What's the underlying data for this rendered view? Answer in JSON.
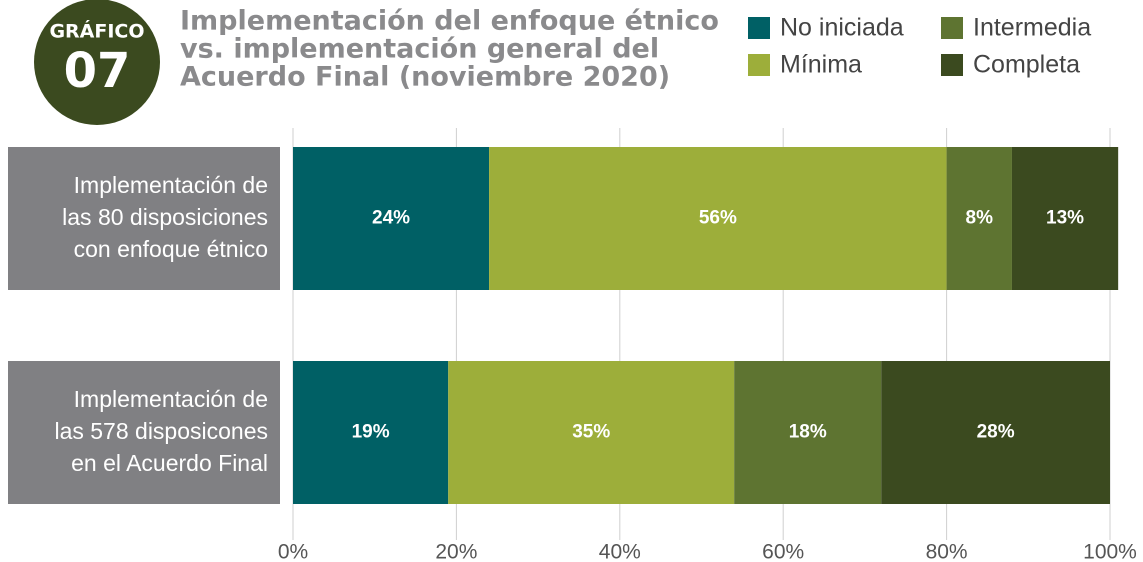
{
  "chart_data": {
    "type": "stacked-bar-horizontal",
    "badge": {
      "label": "GRÁFICO",
      "number": "07"
    },
    "title": [
      "Implementación del enfoque étnico",
      "vs. implementación general del",
      "Acuerdo Final (noviembre 2020)"
    ],
    "categories": [
      [
        "Implementación de",
        "las 80 disposiciones",
        "con enfoque étnico"
      ],
      [
        "Implementación de",
        "las 578 disposicones",
        "en el Acuerdo Final"
      ]
    ],
    "series": [
      {
        "name": "No iniciada",
        "color": "#006065",
        "values": [
          24,
          19
        ],
        "value_labels": [
          "24%",
          "19%"
        ]
      },
      {
        "name": "Mínima",
        "color": "#9dae3a",
        "values": [
          56,
          35
        ],
        "value_labels": [
          "56%",
          "35%"
        ]
      },
      {
        "name": "Intermedia",
        "color": "#5e7431",
        "values": [
          8,
          18
        ],
        "value_labels": [
          "8%",
          "18%"
        ]
      },
      {
        "name": "Completa",
        "color": "#3b4a1f",
        "values": [
          13,
          28
        ],
        "value_labels": [
          "13%",
          "28%"
        ]
      }
    ],
    "xlim": [
      0,
      100
    ],
    "xticks": [
      {
        "value": 0,
        "label": "0%"
      },
      {
        "value": 20,
        "label": "20%"
      },
      {
        "value": 40,
        "label": "40%"
      },
      {
        "value": 60,
        "label": "60%"
      },
      {
        "value": 80,
        "label": "80%"
      },
      {
        "value": 100,
        "label": "100%"
      }
    ],
    "grid": true
  }
}
